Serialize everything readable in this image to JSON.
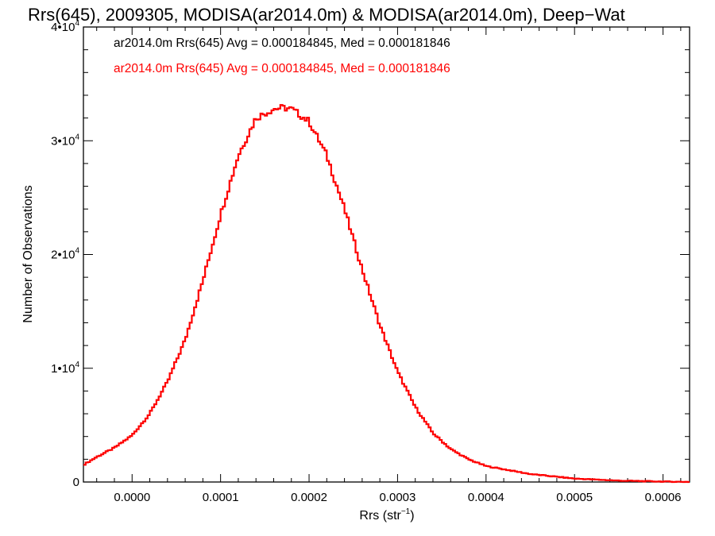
{
  "chart_data": {
    "type": "histogram-step",
    "title": "Rrs(645), 2009305, MODISA(ar2014.0m) & MODISA(ar2014.0m), Deep−Wat",
    "xlabel": "Rrs (str",
    "xlabel_sup": "−1",
    "xlabel_close": ")",
    "ylabel": "Number of Observations",
    "xlim": [
      -5.5e-05,
      0.00063
    ],
    "ylim": [
      0,
      40000
    ],
    "x_ticks": [
      {
        "value": 0.0,
        "label": "0.0000"
      },
      {
        "value": 0.0001,
        "label": "0.0001"
      },
      {
        "value": 0.0002,
        "label": "0.0002"
      },
      {
        "value": 0.0003,
        "label": "0.0003"
      },
      {
        "value": 0.0004,
        "label": "0.0004"
      },
      {
        "value": 0.0005,
        "label": "0.0005"
      },
      {
        "value": 0.0006,
        "label": "0.0006"
      }
    ],
    "y_ticks": [
      {
        "value": 0,
        "base": "0",
        "exp": ""
      },
      {
        "value": 10000,
        "base": "1•10",
        "exp": "4"
      },
      {
        "value": 20000,
        "base": "2•10",
        "exp": "4"
      },
      {
        "value": 30000,
        "base": "3•10",
        "exp": "4"
      },
      {
        "value": 40000,
        "base": "4•10",
        "exp": "4"
      }
    ],
    "legend": [
      {
        "text": "ar2014.0m Rrs(645) Avg = 0.000184845, Med = 0.000181846",
        "color": "#000000"
      },
      {
        "text": "ar2014.0m Rrs(645) Avg = 0.000184845, Med = 0.000181846",
        "color": "#ff0000"
      }
    ],
    "series": [
      {
        "color": "#000000",
        "x": [
          -5.5e-05,
          -4e-05,
          -2e-05,
          0.0,
          2e-05,
          4e-05,
          6e-05,
          8e-05,
          0.0001,
          0.00012,
          0.00014,
          0.00016,
          0.00017,
          0.00018,
          0.0002,
          0.00022,
          0.00024,
          0.00026,
          0.00028,
          0.0003,
          0.00032,
          0.00034,
          0.00036,
          0.00038,
          0.0004,
          0.00045,
          0.0005,
          0.00055,
          0.0006,
          0.00063
        ],
        "y": [
          1500,
          2200,
          3000,
          4100,
          6000,
          8800,
          12500,
          17700,
          23500,
          28700,
          32000,
          32800,
          32900,
          32800,
          31700,
          28700,
          24000,
          18700,
          13800,
          9700,
          6600,
          4300,
          2900,
          2000,
          1400,
          700,
          300,
          120,
          40,
          10
        ]
      },
      {
        "color": "#ff0000",
        "x": [
          -5.5e-05,
          -4e-05,
          -2e-05,
          0.0,
          2e-05,
          4e-05,
          6e-05,
          8e-05,
          0.0001,
          0.00012,
          0.00014,
          0.00016,
          0.00017,
          0.00018,
          0.0002,
          0.00022,
          0.00024,
          0.00026,
          0.00028,
          0.0003,
          0.00032,
          0.00034,
          0.00036,
          0.00038,
          0.0004,
          0.00045,
          0.0005,
          0.00055,
          0.0006,
          0.00063
        ],
        "y": [
          1500,
          2200,
          3000,
          4100,
          6000,
          8800,
          12500,
          17700,
          23500,
          28700,
          32000,
          32800,
          32900,
          32800,
          31700,
          28700,
          24000,
          18700,
          13800,
          9700,
          6600,
          4300,
          2900,
          2000,
          1400,
          700,
          300,
          120,
          40,
          10
        ]
      }
    ]
  }
}
